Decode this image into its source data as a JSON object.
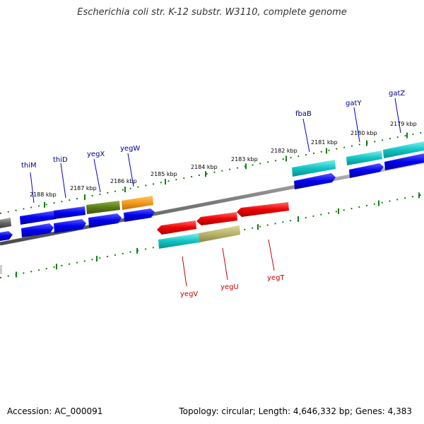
{
  "title": "Escherichia coli str. K-12 substr. W3110, complete genome",
  "footer": {
    "accession": "Accession: AC_000091",
    "summary": "Topology: circular; Length: 4,646,332 bp; Genes: 4,383"
  },
  "scale_labels": [
    "2188 kbp",
    "2187 kbp",
    "2186 kbp",
    "2185 kbp",
    "2184 kbp",
    "2183 kbp",
    "2182 kbp",
    "2181 kbp",
    "2180 kbp",
    "2179 kbp"
  ],
  "genes_top": [
    "thiM",
    "thiD",
    "yegX",
    "yegW",
    "fbaB",
    "gatY",
    "gatZ"
  ],
  "genes_bottom": [
    "yegV",
    "yegU",
    "yegT"
  ],
  "colors": {
    "blue": "#0000ee",
    "red": "#ee0000",
    "cyan": "#11c4c4",
    "olive": "#5a7d16",
    "orange": "#f59a1b",
    "khaki": "#b8b46a",
    "gray": "#666666",
    "tick": "#137f13",
    "backbone": "#808080",
    "label_top": "#000088",
    "label_bottom": "#cc0000"
  }
}
